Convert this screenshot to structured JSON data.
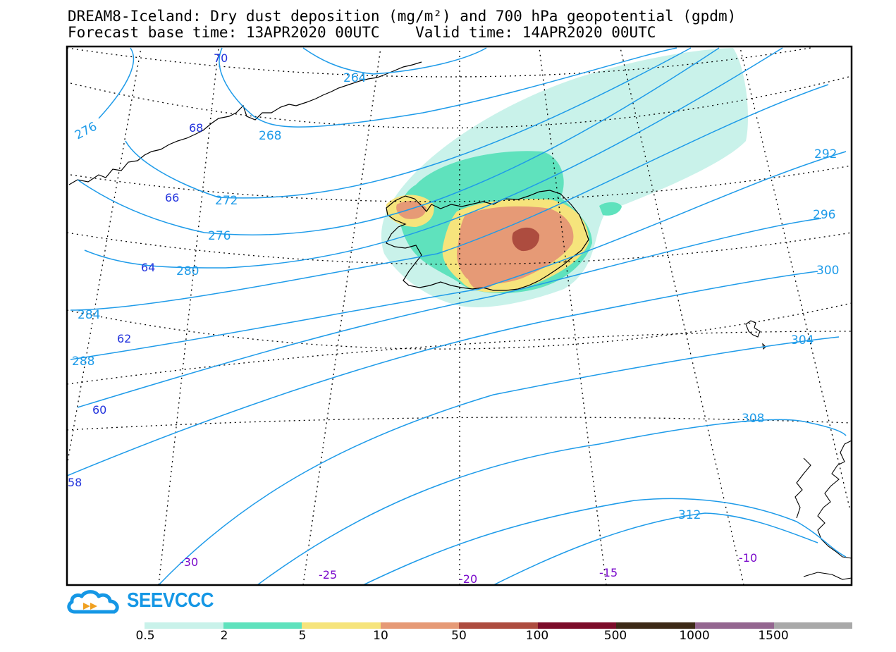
{
  "title": {
    "line1": "DREAM8-Iceland: Dry dust deposition (mg/m²) and 700 hPa geopotential (gpdm)",
    "line2": "Forecast base time: 13APR2020 00UTC    Valid time: 14APR2020 00UTC"
  },
  "geopotential_labels": [
    "264",
    "268",
    "272",
    "276",
    "276",
    "280",
    "284",
    "288",
    "292",
    "296",
    "300",
    "304",
    "308",
    "312"
  ],
  "latitude_labels": [
    "70",
    "68",
    "66",
    "64",
    "62",
    "60",
    "58"
  ],
  "longitude_labels": [
    "-30",
    "-25",
    "-20",
    "-15",
    "-10"
  ],
  "logo": {
    "text": "SEEVCCC",
    "icon": "cloud-logo-icon"
  },
  "legend": {
    "labels": [
      "0.5",
      "2",
      "5",
      "10",
      "50",
      "100",
      "500",
      "1000",
      "1500"
    ],
    "colors": [
      "#c9f2ea",
      "#5fe2bd",
      "#f6e47c",
      "#e69a76",
      "#ad4c3f",
      "#7c0c2a",
      "#3d2a17",
      "#946690",
      "#a9a9a9"
    ]
  },
  "colors": {
    "contour": "#1e9be9",
    "lat_label": "#2233dd",
    "lon_label": "#7a0acb",
    "coast": "#000000",
    "grid": "#000000"
  }
}
